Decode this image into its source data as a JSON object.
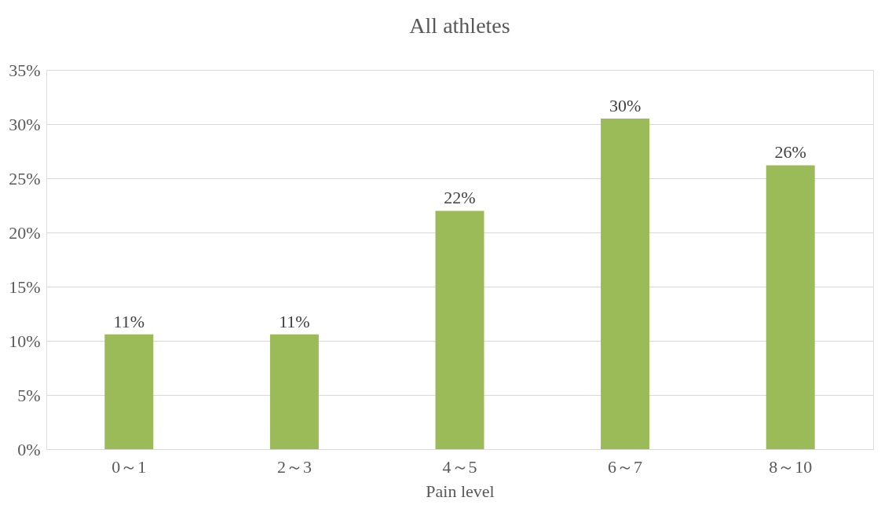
{
  "chart_data": {
    "type": "bar",
    "title": "All athletes",
    "xlabel": "Pain level",
    "categories": [
      "0～1",
      "2～3",
      "4～5",
      "6～7",
      "8～10"
    ],
    "values": [
      10.6,
      10.6,
      22.0,
      30.5,
      26.2
    ],
    "value_labels": [
      "11%",
      "11%",
      "22%",
      "30%",
      "26%"
    ],
    "color": "#9bbb59",
    "ylim": [
      0,
      35
    ],
    "yticks": [
      {
        "value": 0,
        "label": "0%"
      },
      {
        "value": 5,
        "label": "5%"
      },
      {
        "value": 10,
        "label": "10%"
      },
      {
        "value": 15,
        "label": "15%"
      },
      {
        "value": 20,
        "label": "20%"
      },
      {
        "value": 25,
        "label": "25%"
      },
      {
        "value": 30,
        "label": "30%"
      },
      {
        "value": 35,
        "label": "35%"
      }
    ],
    "grid": "y"
  }
}
